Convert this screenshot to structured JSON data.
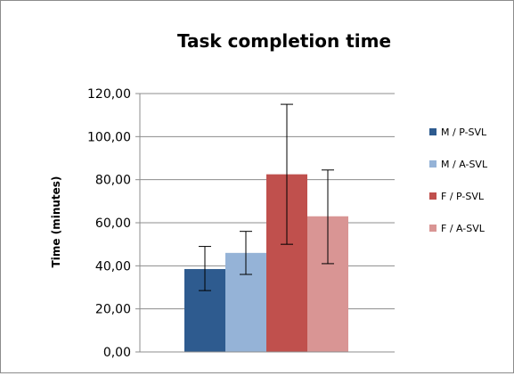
{
  "chart_data": {
    "type": "bar",
    "title": "Task completion time",
    "ylabel": "Time (minutes)",
    "xlabel": "",
    "ylim": [
      0,
      120
    ],
    "y_ticks": [
      "0,00",
      "20,00",
      "40,00",
      "60,00",
      "80,00",
      "100,00",
      "120,00"
    ],
    "grid": true,
    "legend_position": "right",
    "series": [
      {
        "name": "M / P-SVL",
        "value": 38.5,
        "error_low": 28.5,
        "error_high": 49,
        "color": "#2e5b8f"
      },
      {
        "name": "M / A-SVL",
        "value": 46,
        "error_low": 36,
        "error_high": 56,
        "color": "#95b3d7"
      },
      {
        "name": "F / P-SVL",
        "value": 82.5,
        "error_low": 50,
        "error_high": 115,
        "color": "#c0504d"
      },
      {
        "name": "F / A-SVL",
        "value": 63,
        "error_low": 41,
        "error_high": 84.5,
        "color": "#d99594"
      }
    ]
  }
}
